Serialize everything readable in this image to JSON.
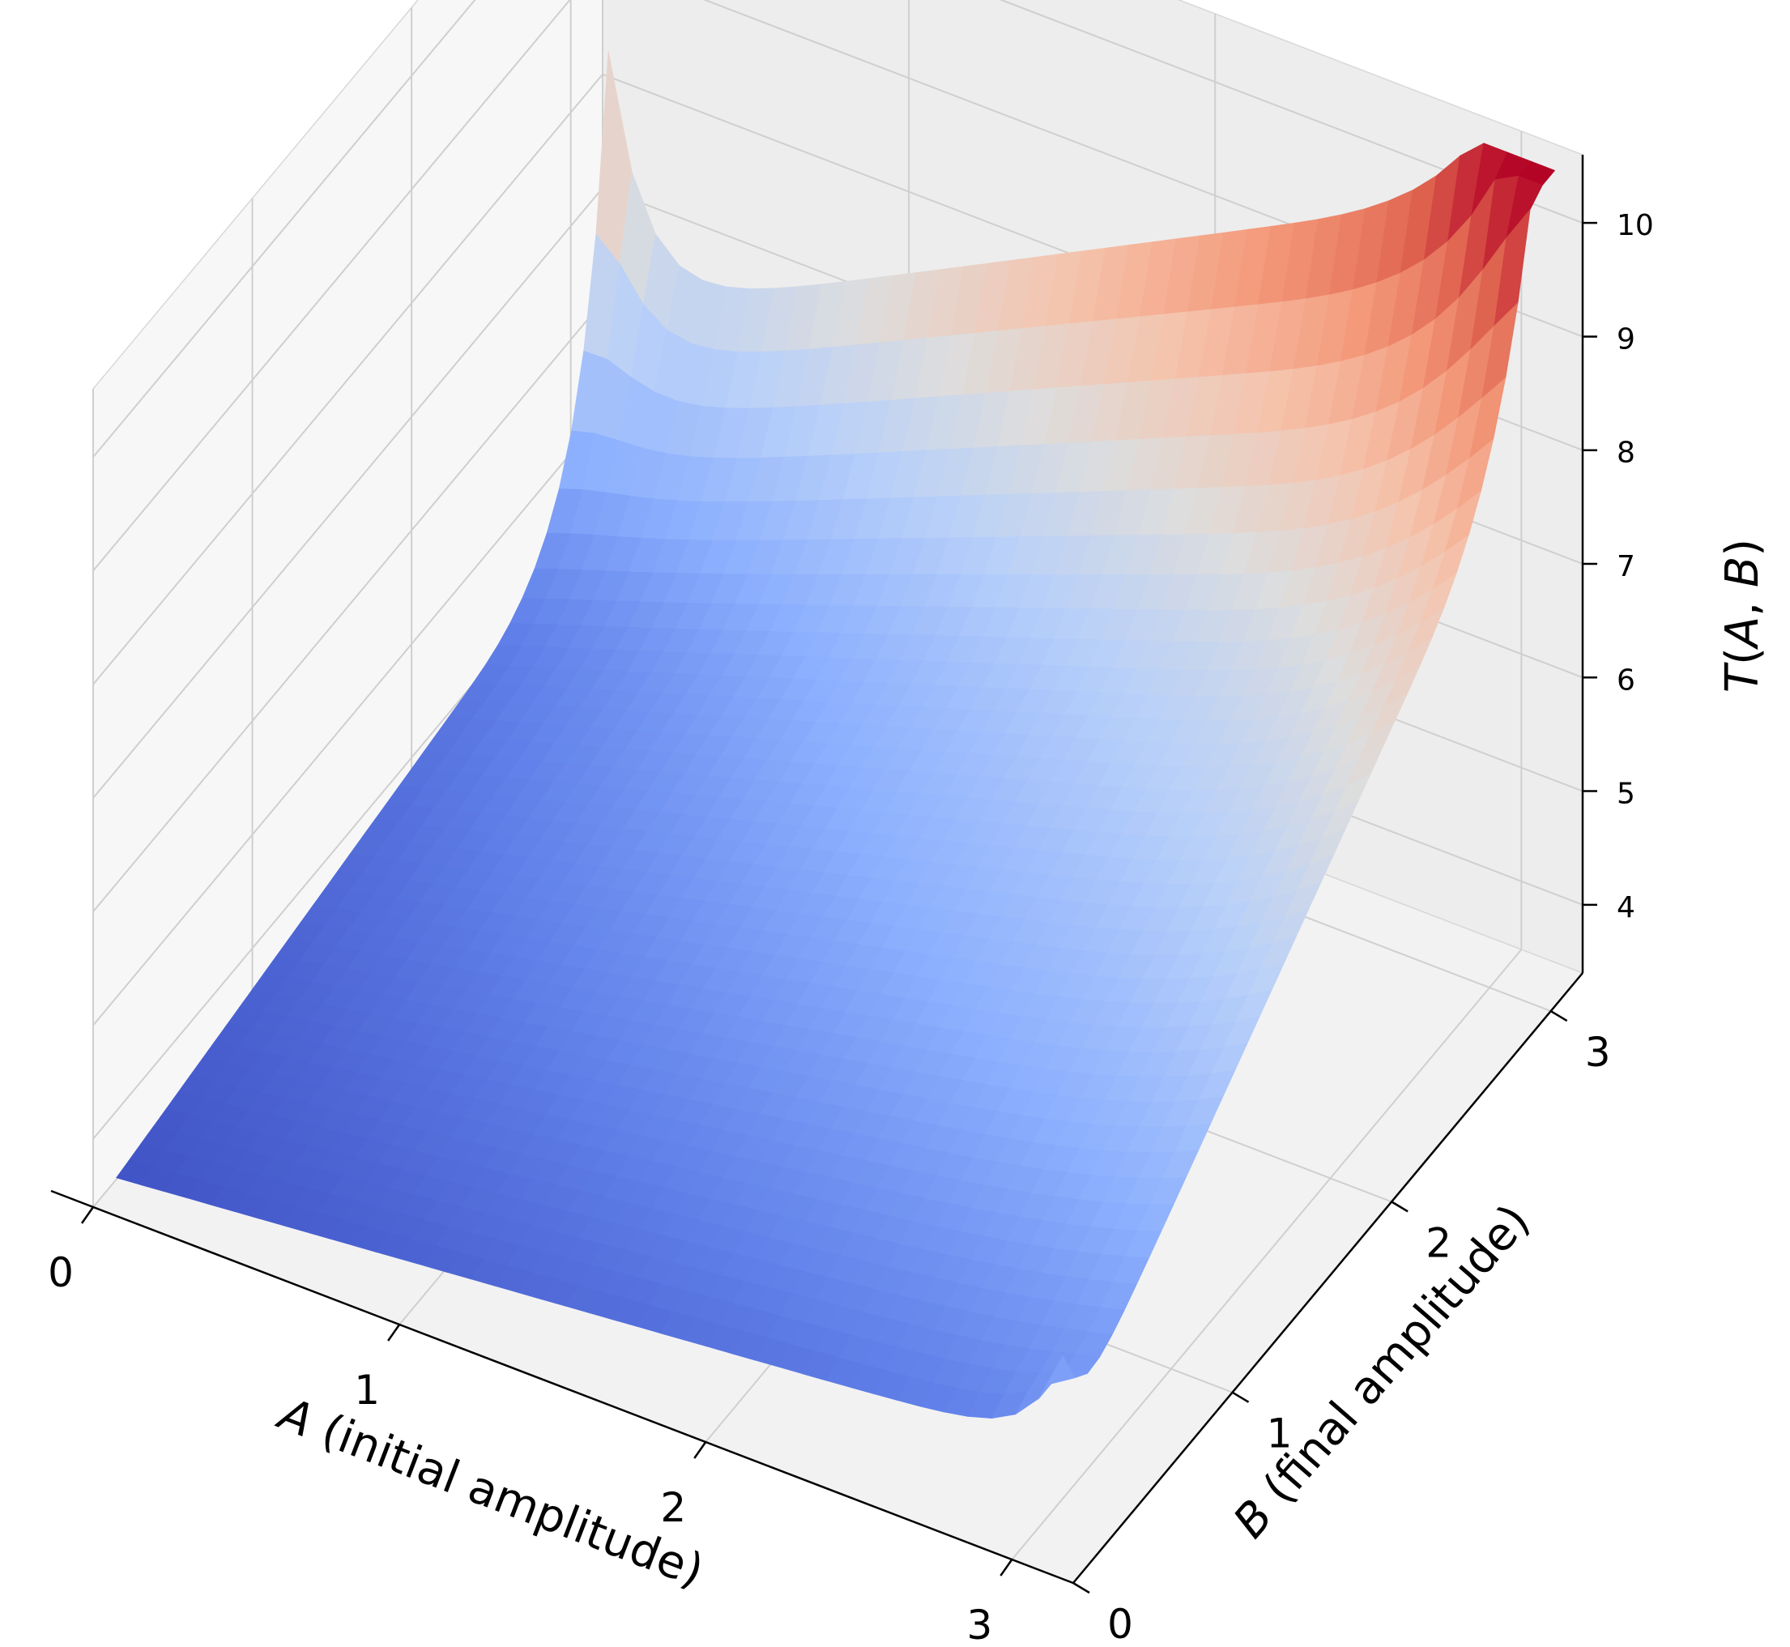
{
  "chart_data": {
    "type": "surface3d",
    "title": "",
    "xlabel": "A (initial amplitude)",
    "ylabel": "B (final amplitude)",
    "zlabel": "T(A, B)",
    "xlim": [
      0,
      3.2
    ],
    "ylim": [
      0,
      3.2
    ],
    "zlim": [
      3.4,
      10.6
    ],
    "xticks": [
      "0",
      "1",
      "2",
      "3"
    ],
    "yticks": [
      "0",
      "1",
      "2",
      "3"
    ],
    "zticks": [
      "4",
      "5",
      "6",
      "7",
      "8",
      "9",
      "10"
    ],
    "colormap": "coolwarm",
    "grid": true,
    "surface": {
      "A_range": [
        0.05,
        3.14
      ],
      "B_range": [
        0.05,
        3.14
      ],
      "T_min": 3.5,
      "T_max": 10.5,
      "peak_values": [
        {
          "A": 0.05,
          "B": 3.14,
          "T": 9.9
        },
        {
          "A": 3.14,
          "B": 0.05,
          "T": 5.5
        },
        {
          "A": 3.14,
          "B": 3.14,
          "T": 10.5
        }
      ]
    }
  }
}
